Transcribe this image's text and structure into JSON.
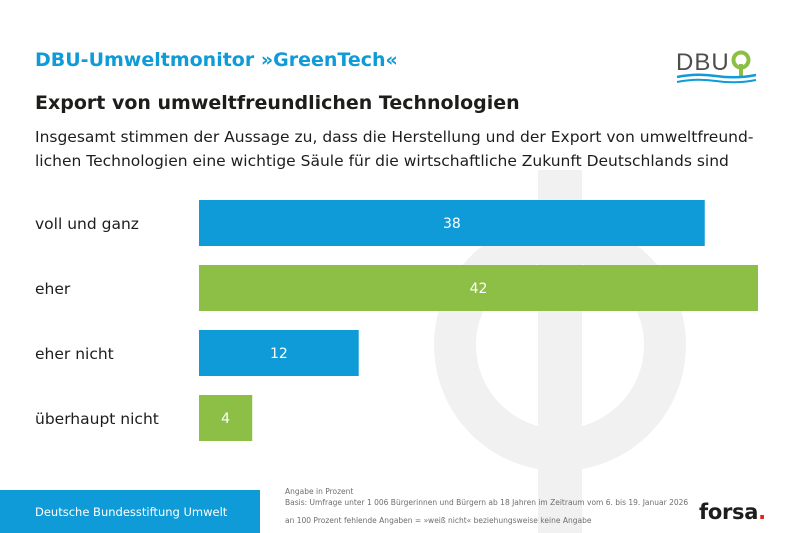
{
  "header": {
    "title": "DBU-Umweltmonitor »GreenTech«",
    "logo_text": "DBU"
  },
  "headline": "Export von umweltfreundlichen Technologien",
  "question": {
    "line1": "Insgesamt stimmen der Aussage zu, dass die Herstellung und der Export von umweltfreund-",
    "line2": "lichen Technologien eine wichtige Säule für die wirtschaftliche Zukunft Deutschlands sind"
  },
  "chart_data": {
    "type": "bar",
    "orientation": "horizontal",
    "categories": [
      "voll und ganz",
      "eher",
      "eher nicht",
      "überhaupt nicht"
    ],
    "values": [
      38,
      42,
      12,
      4
    ],
    "colors": [
      "#0f9bd7",
      "#8dbf47",
      "#0f9bd7",
      "#8dbf47"
    ],
    "unit": "Prozent",
    "xlim": [
      0,
      42
    ]
  },
  "footer": {
    "org": "Deutsche Bundesstiftung Umwelt",
    "note1": "Angabe in Prozent",
    "note2": "Basis: Umfrage unter 1 006 Bürgerinnen und Bürgern ab 18 Jahren im Zeitraum vom 6. bis 19. Januar 2026",
    "note3": "an 100 Prozent fehlende Angaben = »weiß nicht« beziehungsweise keine Angabe",
    "pollster": "forsa",
    "pollster_dot": "."
  },
  "colors": {
    "blue": "#0f9bd7",
    "green": "#8dbf47",
    "text": "#1d1d1b",
    "red": "#e3261b"
  }
}
